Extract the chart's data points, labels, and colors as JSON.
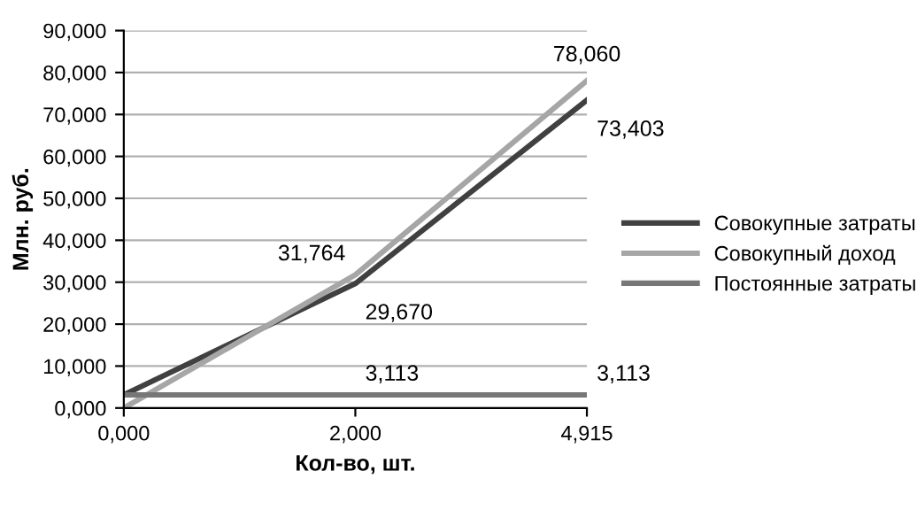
{
  "chart_data": {
    "type": "line",
    "xlabel": "Кол-во, шт.",
    "ylabel": "Млн. руб.",
    "categories": [
      "0,000",
      "2,000",
      "4,915"
    ],
    "series": [
      {
        "name": "Совокупные затраты",
        "color": "#404040",
        "values": [
          3.113,
          29.67,
          73.403
        ],
        "value_labels": [
          null,
          "29,670",
          "73,403"
        ]
      },
      {
        "name": "Совокупный доход",
        "color": "#a6a6a6",
        "values": [
          0,
          31.764,
          78.06
        ],
        "value_labels": [
          null,
          "31,764",
          "78,060"
        ]
      },
      {
        "name": "Постоянные затраты",
        "color": "#777777",
        "values": [
          3.113,
          3.113,
          3.113
        ],
        "value_labels": [
          null,
          "3,113",
          "3,113"
        ]
      }
    ],
    "ylim": [
      0,
      90
    ],
    "yticks": [
      {
        "value": 0,
        "label": "0,000"
      },
      {
        "value": 10,
        "label": "10,000"
      },
      {
        "value": 20,
        "label": "20,000"
      },
      {
        "value": 30,
        "label": "30,000"
      },
      {
        "value": 40,
        "label": "40,000"
      },
      {
        "value": 50,
        "label": "50,000"
      },
      {
        "value": 60,
        "label": "60,000"
      },
      {
        "value": 70,
        "label": "70,000"
      },
      {
        "value": 80,
        "label": "80,000"
      },
      {
        "value": 90,
        "label": "90,000"
      }
    ],
    "grid": "y",
    "legend": "right",
    "marker": "none",
    "line_style": "solid"
  }
}
